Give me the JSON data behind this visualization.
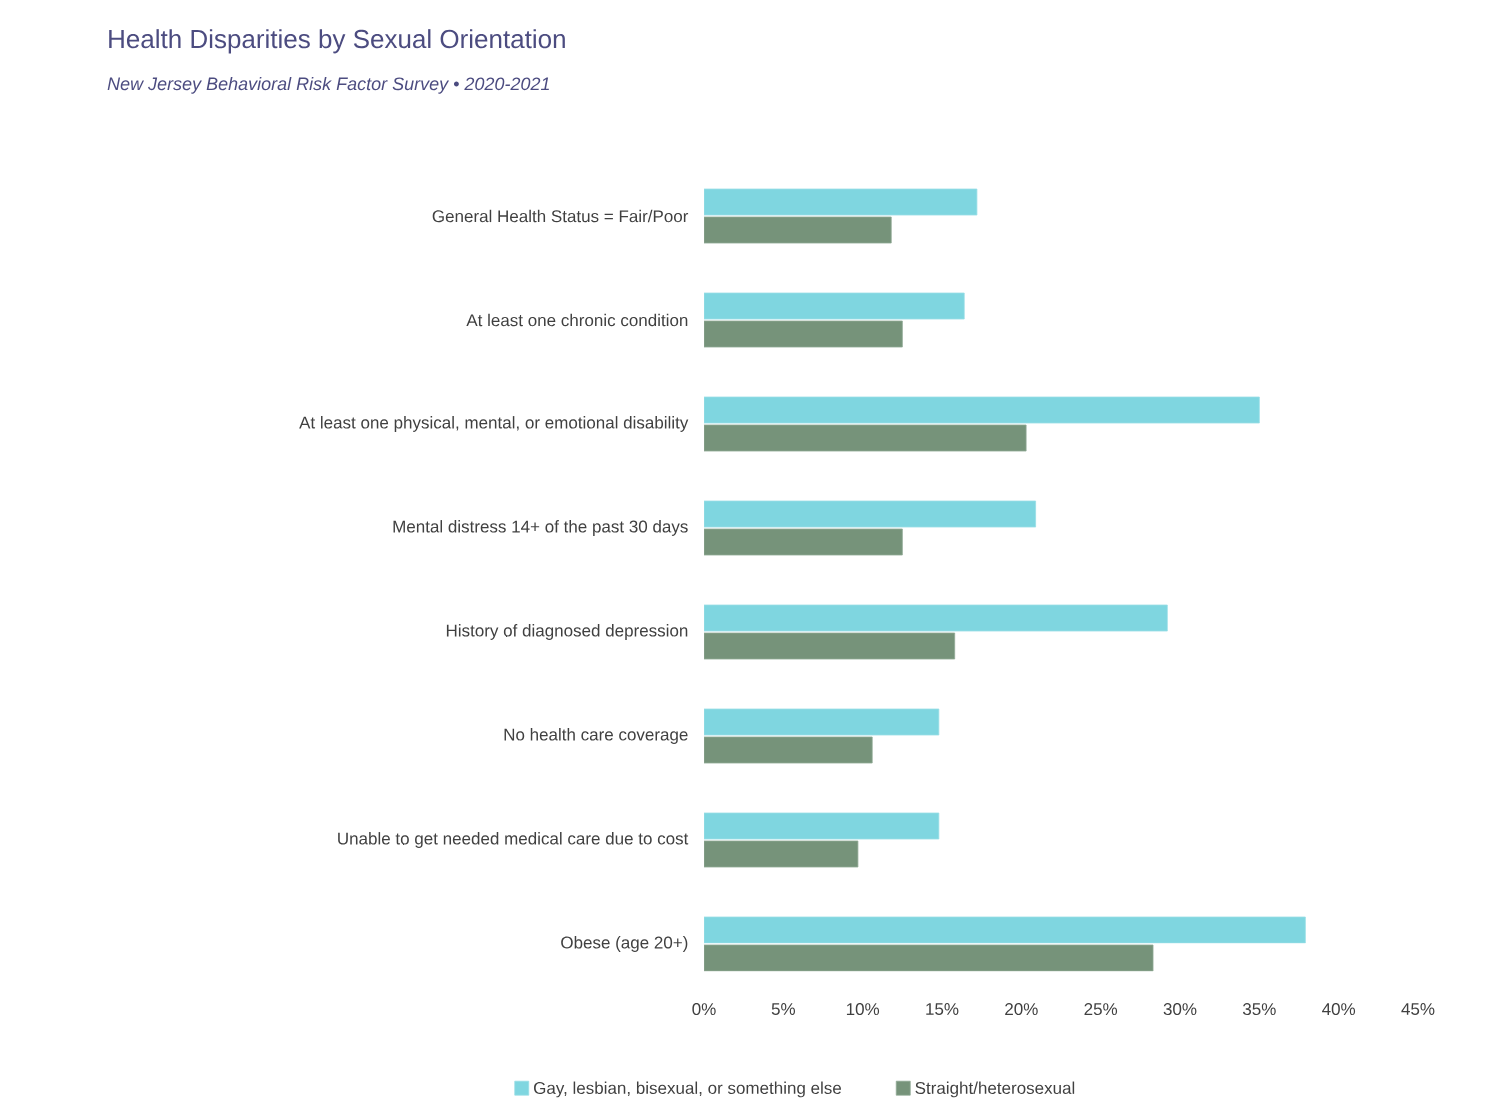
{
  "chart_data": {
    "type": "bar",
    "orientation": "horizontal",
    "title": "Health Disparities by Sexual Orientation",
    "subtitle": "New Jersey Behavioral Risk Factor Survey • 2020-2021",
    "categories": [
      "General Health Status = Fair/Poor",
      "At least one chronic condition",
      "At least one physical, mental, or emotional disability",
      "Mental distress 14+ of the past 30 days",
      "History of diagnosed depression",
      "No health care coverage",
      "Unable to get needed medical care due to cost",
      "Obese (age 20+)"
    ],
    "series": [
      {
        "name": "Gay, lesbian, bisexual, or something else",
        "color": "#7fd6e0",
        "values": [
          17.2,
          16.4,
          35.0,
          20.9,
          29.2,
          14.8,
          14.8,
          37.9
        ]
      },
      {
        "name": "Straight/heterosexual",
        "color": "#76937a",
        "values": [
          11.8,
          12.5,
          20.3,
          12.5,
          15.8,
          10.6,
          9.7,
          28.3
        ]
      }
    ],
    "xlim": [
      0,
      45
    ],
    "xticks": [
      {
        "value": 0,
        "label": "0%"
      },
      {
        "value": 5,
        "label": "5%"
      },
      {
        "value": 10,
        "label": "10%"
      },
      {
        "value": 15,
        "label": "15%"
      },
      {
        "value": 20,
        "label": "20%"
      },
      {
        "value": 25,
        "label": "25%"
      },
      {
        "value": 30,
        "label": "30%"
      },
      {
        "value": 35,
        "label": "35%"
      },
      {
        "value": 40,
        "label": "40%"
      },
      {
        "value": 45,
        "label": "45%"
      }
    ],
    "grid": false,
    "legend": "bottom"
  }
}
